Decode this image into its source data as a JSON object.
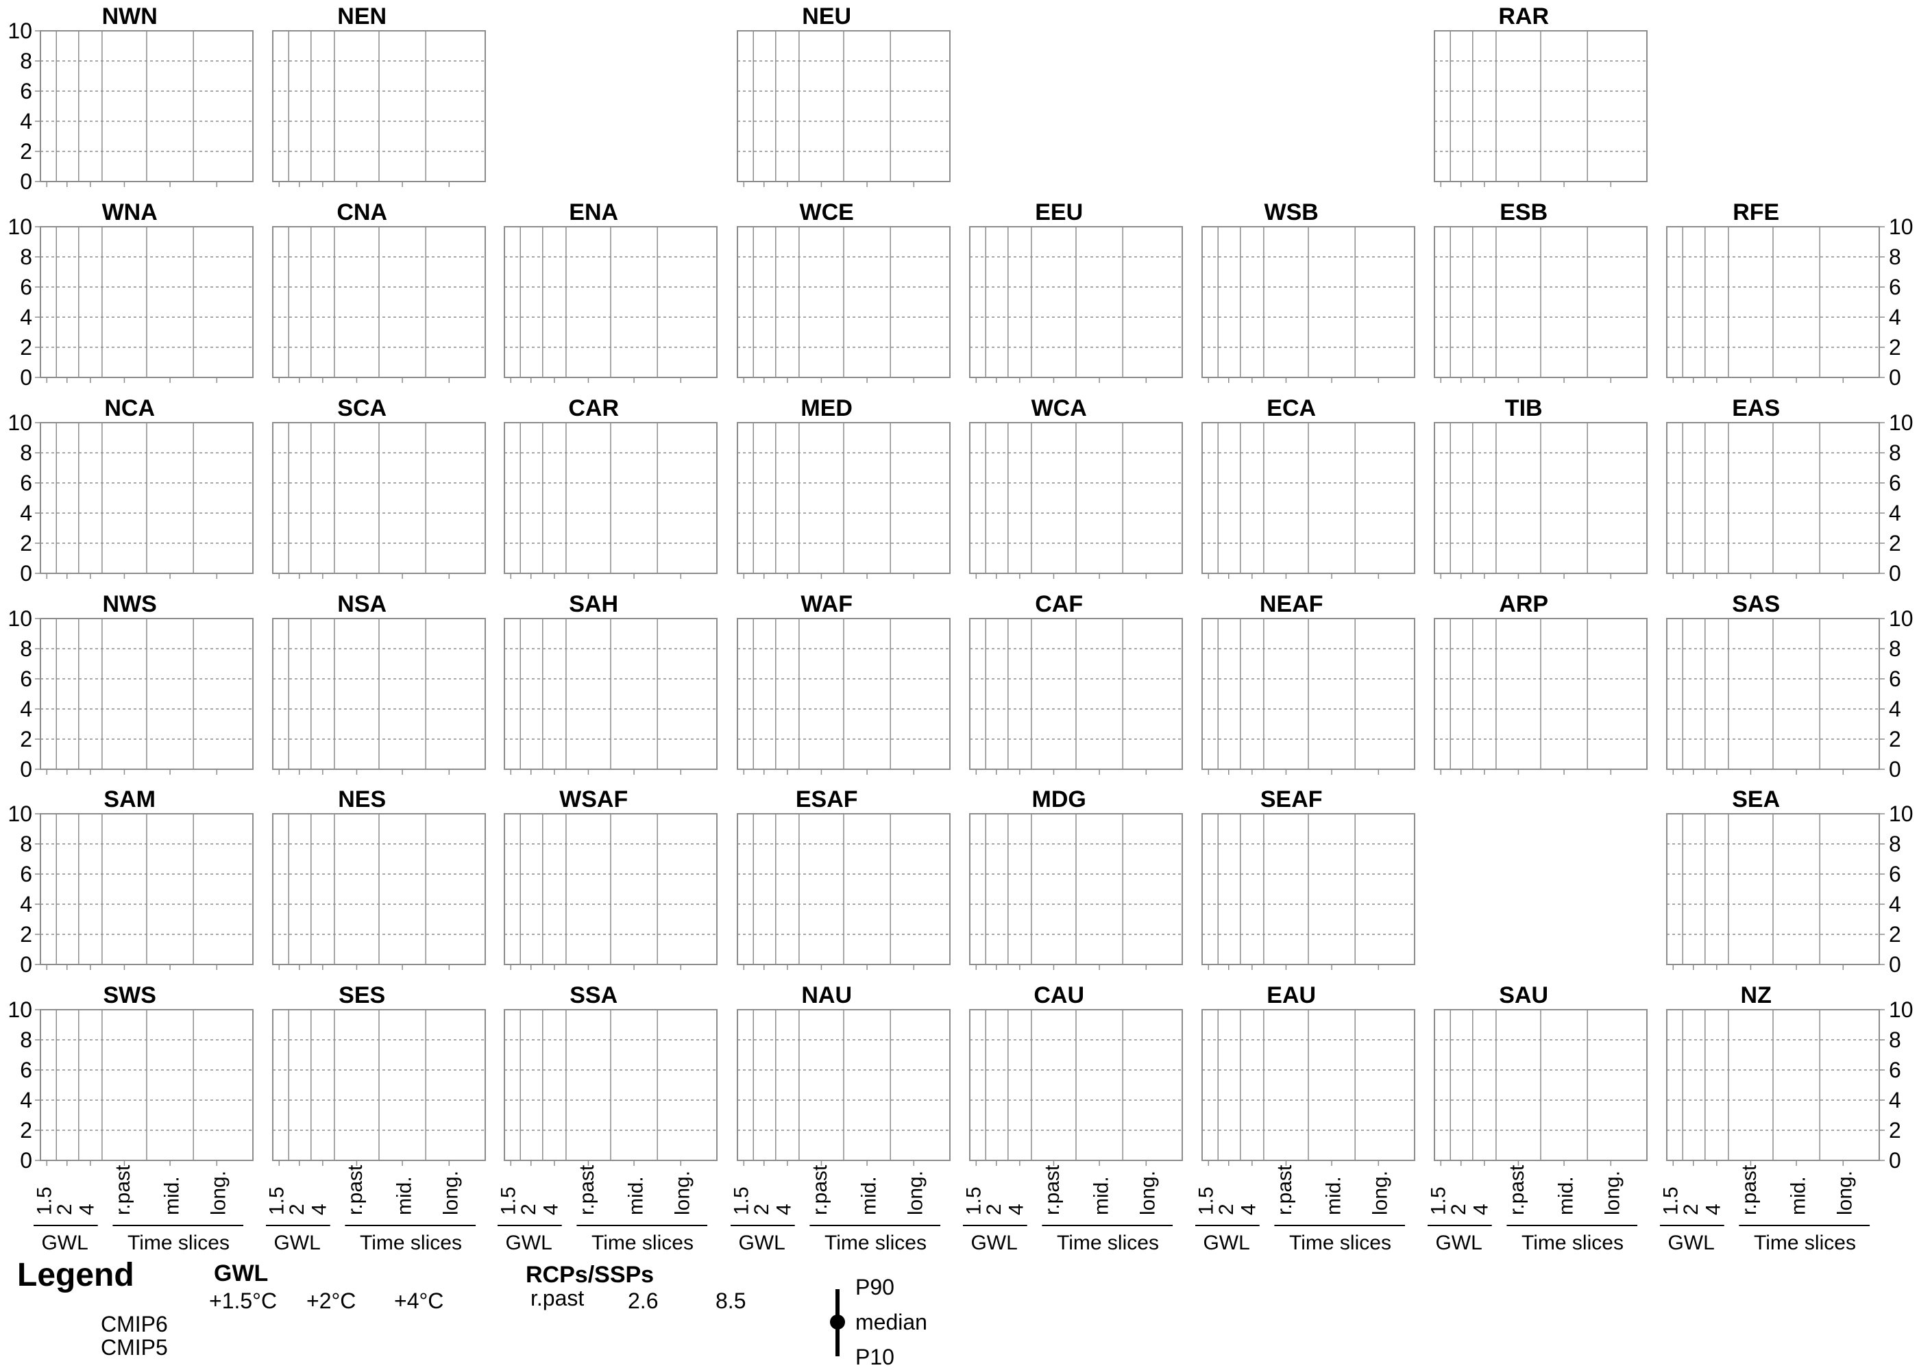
{
  "chart_data": {
    "type": "multi-panel",
    "description_note": "",
    "rows": [
      [
        "NWN",
        "NEN",
        "",
        "NEU",
        "",
        "",
        "RAR",
        ""
      ],
      [
        "WNA",
        "CNA",
        "ENA",
        "WCE",
        "EEU",
        "WSB",
        "ESB",
        "RFE"
      ],
      [
        "NCA",
        "SCA",
        "CAR",
        "MED",
        "WCA",
        "ECA",
        "TIB",
        "EAS"
      ],
      [
        "NWS",
        "NSA",
        "SAH",
        "WAF",
        "CAF",
        "NEAF",
        "ARP",
        "SAS"
      ],
      [
        "SAM",
        "NES",
        "WSAF",
        "ESAF",
        "MDG",
        "SEAF",
        "",
        "SEA"
      ],
      [
        "SWS",
        "SES",
        "SSA",
        "NAU",
        "CAU",
        "EAU",
        "SAU",
        "NZ"
      ]
    ],
    "ylim": [
      0,
      10
    ],
    "yticks": [
      "0",
      "2",
      "4",
      "6",
      "8",
      "10"
    ],
    "xticks": [
      "1.5",
      "2",
      "4",
      "r.past",
      "mid.",
      "long."
    ],
    "group_labels": [
      "GWL",
      "Time slices"
    ],
    "series": []
  },
  "legend": {
    "title": "Legend",
    "gwl_title": "GWL",
    "gwl_items": [
      "+1.5°C",
      "+2°C",
      "+4°C"
    ],
    "models": [
      "CMIP6",
      "CMIP5"
    ],
    "rcp_title": "RCPs/SSPs",
    "rcp_items": [
      "r.past",
      "2.6",
      "8.5"
    ],
    "stats": [
      "P90",
      "median",
      "P10"
    ]
  }
}
